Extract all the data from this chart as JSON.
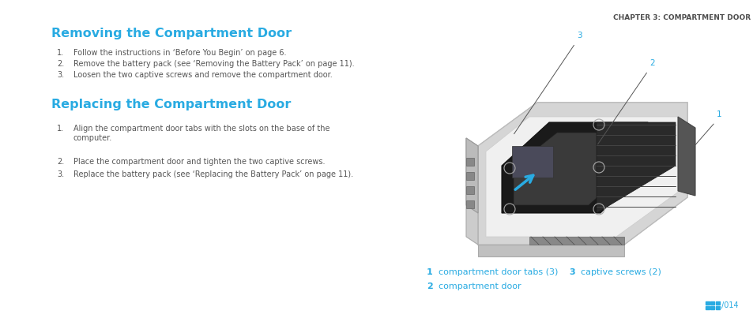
{
  "bg_color": "#ffffff",
  "chapter_header": "CHAPTER 3: COMPARTMENT DOOR",
  "chapter_header_color": "#4d4d4d",
  "chapter_header_fontsize": 6.5,
  "title1": "Removing the Compartment Door",
  "title1_color": "#29abe2",
  "title1_fontsize": 11.5,
  "steps1": [
    "Follow the instructions in ‘Before You Begin’ on page 6.",
    "Remove the battery pack (see ‘Removing the Battery Pack’ on page 11).",
    "Loosen the two captive screws and remove the compartment door."
  ],
  "title2": "Replacing the Compartment Door",
  "title2_color": "#29abe2",
  "title2_fontsize": 11.5,
  "steps2": [
    "Align the compartment door tabs with the slots on the base of the\ncomputer.",
    "Place the compartment door and tighten the two captive screws.",
    "Replace the battery pack (see ‘Replacing the Battery Pack’ on page 11)."
  ],
  "steps_color": "#555555",
  "steps_fontsize": 7.0,
  "legend_items": [
    {
      "num": "1",
      "label": "compartment door tabs (3)"
    },
    {
      "num": "2",
      "label": "compartment door"
    },
    {
      "num": "3",
      "label": "captive screws (2)"
    }
  ],
  "legend_color": "#29abe2",
  "legend_num_fontsize": 8,
  "legend_label_fontsize": 8,
  "page_num": "014",
  "page_icon_color": "#29abe2"
}
